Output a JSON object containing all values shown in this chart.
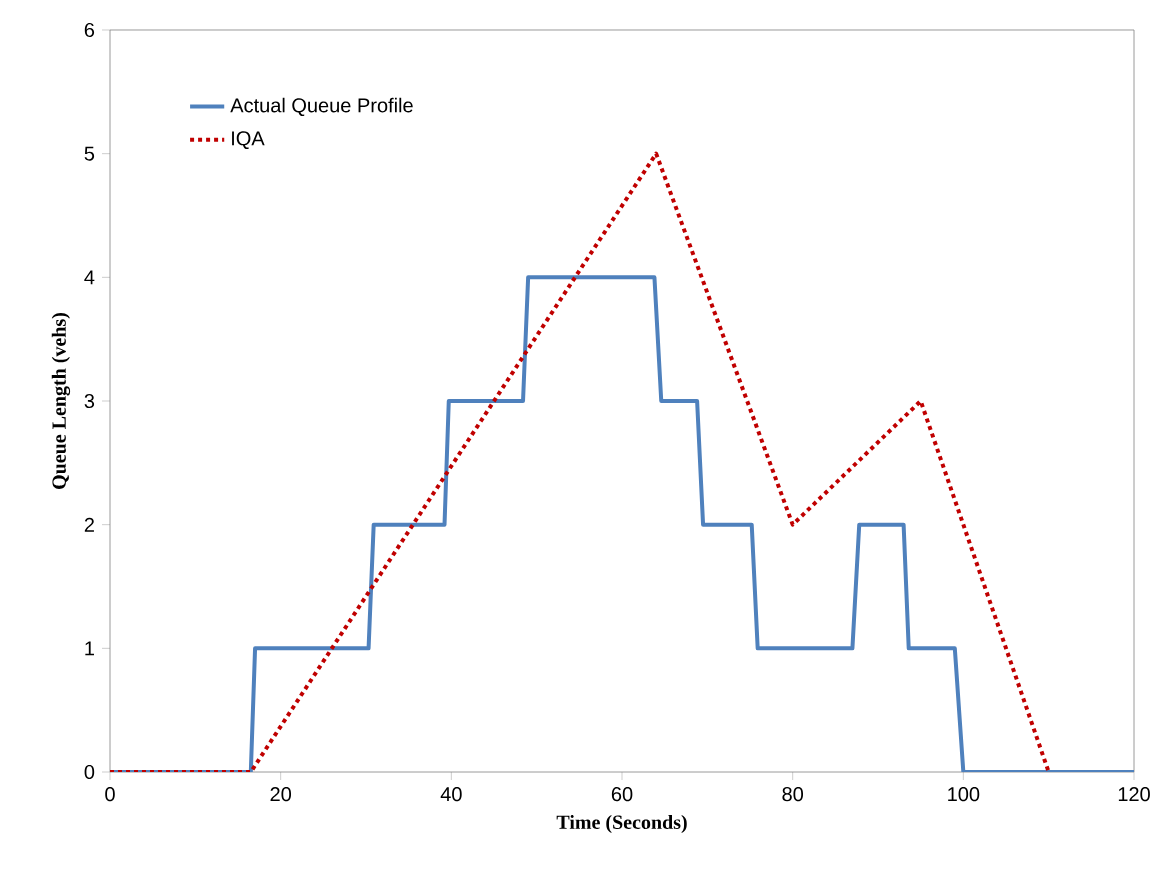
{
  "chart_data": {
    "type": "line",
    "xlabel": "Time (Seconds)",
    "ylabel": "Queue Length (vehs)",
    "xlim": [
      0,
      120
    ],
    "ylim": [
      0,
      6
    ],
    "xticks": [
      0,
      20,
      40,
      60,
      80,
      100,
      120
    ],
    "yticks": [
      0,
      1,
      2,
      3,
      4,
      5,
      6
    ],
    "legend": "top left",
    "grid": false,
    "marker": "none",
    "series": [
      {
        "name": "Actual Queue Profile",
        "color": "#4f81bd",
        "line_style": "solid",
        "x": [
          0,
          16.5,
          17,
          30.3,
          30.9,
          39.2,
          39.7,
          48.4,
          49,
          63.8,
          64.6,
          68.8,
          69.5,
          75.2,
          75.9,
          87,
          87.8,
          93,
          93.6,
          99,
          100,
          120
        ],
        "values": [
          0,
          0,
          1,
          1,
          2,
          2,
          3,
          3,
          4,
          4,
          3,
          3,
          2,
          2,
          1,
          1,
          2,
          2,
          1,
          1,
          0,
          0
        ]
      },
      {
        "name": "IQA",
        "color": "#c00000",
        "line_style": "dotted",
        "x": [
          0,
          16.5,
          64,
          80,
          95,
          110
        ],
        "values": [
          0,
          0,
          5,
          2,
          3,
          0
        ]
      }
    ]
  }
}
